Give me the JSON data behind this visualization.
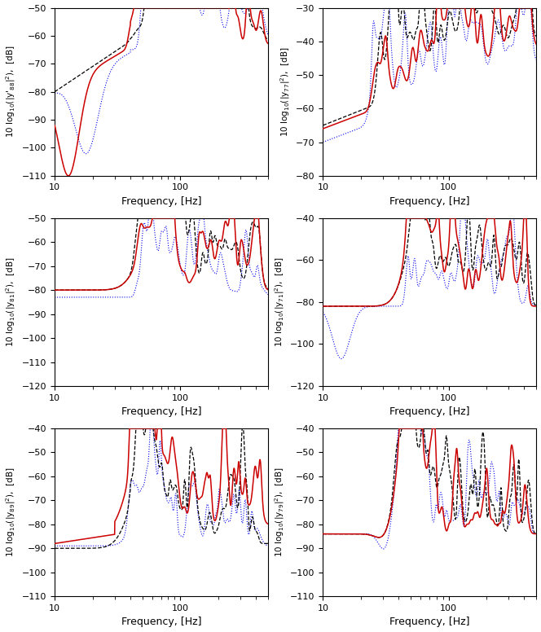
{
  "subplots": [
    {
      "ylabel": "10 log$_{10}$(|y'$_{88}$|$^2$),  [dB]",
      "ylim": [
        -110,
        -50
      ],
      "yticks": [
        -110,
        -100,
        -90,
        -80,
        -70,
        -60,
        -50
      ],
      "xlabel": "Frequency, [Hz]"
    },
    {
      "ylabel": "10 log$_{10}$(|y$_{77}$|$^2$),  [dB]",
      "ylim": [
        -80,
        -30
      ],
      "yticks": [
        -80,
        -70,
        -60,
        -50,
        -40,
        -30
      ],
      "xlabel": "Frequency, [Hz]"
    },
    {
      "ylabel": "10 log$_{10}$(|y$_{81}$|$^2$),  [dB]",
      "ylim": [
        -120,
        -50
      ],
      "yticks": [
        -120,
        -110,
        -100,
        -90,
        -80,
        -70,
        -60,
        -50
      ],
      "xlabel": "Frequency, [Hz]"
    },
    {
      "ylabel": "10 log$_{10}$(|y$_{71}$|$^2$),  [dB]",
      "ylim": [
        -120,
        -40
      ],
      "yticks": [
        -120,
        -100,
        -80,
        -60,
        -40
      ],
      "xlabel": "Frequency, [Hz]"
    },
    {
      "ylabel": "10 log$_{10}$(|y$_{89}$|$^2$),  [dB]",
      "ylim": [
        -110,
        -40
      ],
      "yticks": [
        -110,
        -100,
        -90,
        -80,
        -70,
        -60,
        -50,
        -40
      ],
      "xlabel": "Frequency, [Hz]"
    },
    {
      "ylabel": "10 log$_{10}$(|y$_{79}$|$^2$),  [dB]",
      "ylim": [
        -110,
        -40
      ],
      "yticks": [
        -110,
        -100,
        -90,
        -80,
        -70,
        -60,
        -50,
        -40
      ],
      "xlabel": "Frequency, [Hz]"
    }
  ],
  "xlim": [
    10,
    500
  ],
  "colors": {
    "black": "#000000",
    "blue": "#0000ee",
    "red": "#cc0000"
  },
  "lw_black": 0.9,
  "lw_blue": 0.8,
  "lw_red": 1.1,
  "background_color": "#ffffff"
}
